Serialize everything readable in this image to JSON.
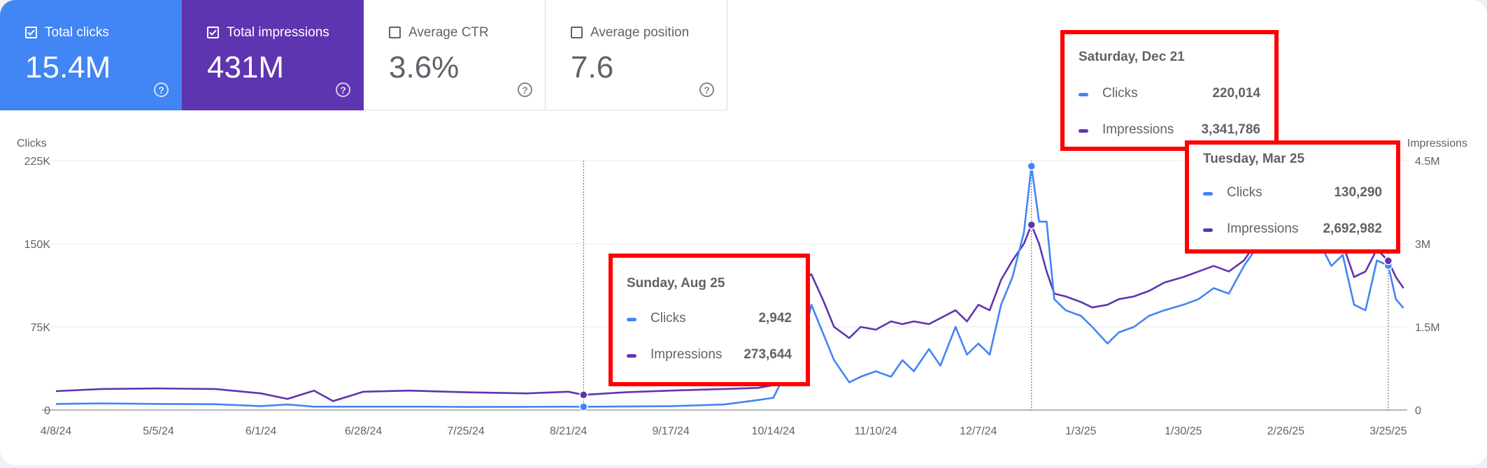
{
  "metrics": [
    {
      "label": "Total clicks",
      "value": "15.4M",
      "checked": true,
      "color": "#4285f4"
    },
    {
      "label": "Total impressions",
      "value": "431M",
      "checked": true,
      "color": "#5e35b1"
    },
    {
      "label": "Average CTR",
      "value": "3.6%",
      "checked": false,
      "color": "#ffffff"
    },
    {
      "label": "Average position",
      "value": "7.6",
      "checked": false,
      "color": "#ffffff"
    }
  ],
  "help_glyph": "?",
  "tooltips": [
    {
      "date": "Sunday, Aug 25",
      "clicks_label": "Clicks",
      "clicks": "2,942",
      "impressions_label": "Impressions",
      "impressions": "273,644"
    },
    {
      "date": "Saturday, Dec 21",
      "clicks_label": "Clicks",
      "clicks": "220,014",
      "impressions_label": "Impressions",
      "impressions": "3,341,786"
    },
    {
      "date": "Tuesday, Mar 25",
      "clicks_label": "Clicks",
      "clicks": "130,290",
      "impressions_label": "Impressions",
      "impressions": "2,692,982"
    }
  ],
  "chart_data": {
    "type": "line",
    "x_start": "2024-04-08",
    "x_end": "2025-03-30",
    "xtick_labels": [
      "4/8/24",
      "5/5/24",
      "6/1/24",
      "6/28/24",
      "7/25/24",
      "8/21/24",
      "9/17/24",
      "10/14/24",
      "11/10/24",
      "12/7/24",
      "1/3/25",
      "1/30/25",
      "2/26/25",
      "3/25/25"
    ],
    "xtick_dates": [
      "2024-04-08",
      "2024-05-05",
      "2024-06-01",
      "2024-06-28",
      "2024-07-25",
      "2024-08-21",
      "2024-09-17",
      "2024-10-14",
      "2024-11-10",
      "2024-12-07",
      "2025-01-03",
      "2025-01-30",
      "2025-02-26",
      "2025-03-25"
    ],
    "y_left": {
      "label": "Clicks",
      "ticks": [
        0,
        75000,
        150000,
        225000
      ],
      "tick_labels": [
        "0",
        "75K",
        "150K",
        "225K"
      ],
      "range": [
        0,
        225000
      ]
    },
    "y_right": {
      "label": "Impressions",
      "ticks": [
        0,
        1500000,
        3000000,
        4500000
      ],
      "tick_labels": [
        "0",
        "1.5M",
        "3M",
        "4.5M"
      ],
      "range": [
        0,
        4500000
      ]
    },
    "grid": true,
    "highlight_dates": [
      "2024-08-25",
      "2024-12-21",
      "2025-03-25"
    ],
    "series": [
      {
        "name": "Clicks",
        "axis": "left",
        "color": "#4285f4",
        "points": [
          [
            "2024-04-08",
            5500
          ],
          [
            "2024-04-20",
            6000
          ],
          [
            "2024-05-05",
            5500
          ],
          [
            "2024-05-20",
            5200
          ],
          [
            "2024-06-01",
            3500
          ],
          [
            "2024-06-08",
            5000
          ],
          [
            "2024-06-15",
            3000
          ],
          [
            "2024-06-28",
            3000
          ],
          [
            "2024-07-15",
            3000
          ],
          [
            "2024-07-25",
            2800
          ],
          [
            "2024-08-10",
            2900
          ],
          [
            "2024-08-21",
            3000
          ],
          [
            "2024-08-25",
            2942
          ],
          [
            "2024-09-05",
            3200
          ],
          [
            "2024-09-17",
            3500
          ],
          [
            "2024-10-01",
            5000
          ],
          [
            "2024-10-10",
            9000
          ],
          [
            "2024-10-14",
            11000
          ],
          [
            "2024-10-16",
            25000
          ],
          [
            "2024-10-18",
            45000
          ],
          [
            "2024-10-21",
            50000
          ],
          [
            "2024-10-24",
            95000
          ],
          [
            "2024-10-27",
            70000
          ],
          [
            "2024-10-30",
            45000
          ],
          [
            "2024-11-03",
            25000
          ],
          [
            "2024-11-06",
            30000
          ],
          [
            "2024-11-10",
            35000
          ],
          [
            "2024-11-14",
            30000
          ],
          [
            "2024-11-17",
            45000
          ],
          [
            "2024-11-20",
            35000
          ],
          [
            "2024-11-24",
            55000
          ],
          [
            "2024-11-27",
            40000
          ],
          [
            "2024-12-01",
            75000
          ],
          [
            "2024-12-04",
            50000
          ],
          [
            "2024-12-07",
            60000
          ],
          [
            "2024-12-10",
            50000
          ],
          [
            "2024-12-13",
            95000
          ],
          [
            "2024-12-16",
            120000
          ],
          [
            "2024-12-19",
            160000
          ],
          [
            "2024-12-21",
            220014
          ],
          [
            "2024-12-23",
            170000
          ],
          [
            "2024-12-25",
            170000
          ],
          [
            "2024-12-27",
            100000
          ],
          [
            "2024-12-30",
            90000
          ],
          [
            "2025-01-03",
            85000
          ],
          [
            "2025-01-06",
            75000
          ],
          [
            "2025-01-10",
            60000
          ],
          [
            "2025-01-13",
            70000
          ],
          [
            "2025-01-17",
            75000
          ],
          [
            "2025-01-21",
            85000
          ],
          [
            "2025-01-25",
            90000
          ],
          [
            "2025-01-30",
            95000
          ],
          [
            "2025-02-03",
            100000
          ],
          [
            "2025-02-07",
            110000
          ],
          [
            "2025-02-11",
            105000
          ],
          [
            "2025-02-15",
            130000
          ],
          [
            "2025-02-19",
            150000
          ],
          [
            "2025-02-23",
            165000
          ],
          [
            "2025-02-26",
            180000
          ],
          [
            "2025-03-01",
            195000
          ],
          [
            "2025-03-04",
            175000
          ],
          [
            "2025-03-07",
            150000
          ],
          [
            "2025-03-10",
            130000
          ],
          [
            "2025-03-13",
            140000
          ],
          [
            "2025-03-16",
            95000
          ],
          [
            "2025-03-19",
            90000
          ],
          [
            "2025-03-22",
            135000
          ],
          [
            "2025-03-25",
            130290
          ],
          [
            "2025-03-27",
            100000
          ],
          [
            "2025-03-29",
            92000
          ]
        ]
      },
      {
        "name": "Impressions",
        "axis": "right",
        "color": "#5e35b1",
        "points": [
          [
            "2024-04-08",
            340000
          ],
          [
            "2024-04-20",
            380000
          ],
          [
            "2024-05-05",
            390000
          ],
          [
            "2024-05-20",
            380000
          ],
          [
            "2024-06-01",
            300000
          ],
          [
            "2024-06-08",
            200000
          ],
          [
            "2024-06-15",
            350000
          ],
          [
            "2024-06-20",
            160000
          ],
          [
            "2024-06-28",
            330000
          ],
          [
            "2024-07-10",
            350000
          ],
          [
            "2024-07-25",
            320000
          ],
          [
            "2024-08-10",
            300000
          ],
          [
            "2024-08-21",
            330000
          ],
          [
            "2024-08-25",
            273644
          ],
          [
            "2024-09-05",
            320000
          ],
          [
            "2024-09-17",
            350000
          ],
          [
            "2024-10-01",
            380000
          ],
          [
            "2024-10-10",
            400000
          ],
          [
            "2024-10-14",
            450000
          ],
          [
            "2024-10-16",
            1000000
          ],
          [
            "2024-10-18",
            1700000
          ],
          [
            "2024-10-21",
            2300000
          ],
          [
            "2024-10-24",
            2450000
          ],
          [
            "2024-10-27",
            2000000
          ],
          [
            "2024-10-30",
            1500000
          ],
          [
            "2024-11-03",
            1300000
          ],
          [
            "2024-11-06",
            1500000
          ],
          [
            "2024-11-10",
            1450000
          ],
          [
            "2024-11-14",
            1600000
          ],
          [
            "2024-11-17",
            1550000
          ],
          [
            "2024-11-20",
            1600000
          ],
          [
            "2024-11-24",
            1550000
          ],
          [
            "2024-12-01",
            1800000
          ],
          [
            "2024-12-04",
            1600000
          ],
          [
            "2024-12-07",
            1900000
          ],
          [
            "2024-12-10",
            1800000
          ],
          [
            "2024-12-13",
            2350000
          ],
          [
            "2024-12-16",
            2700000
          ],
          [
            "2024-12-19",
            3000000
          ],
          [
            "2024-12-21",
            3341786
          ],
          [
            "2024-12-23",
            3000000
          ],
          [
            "2024-12-25",
            2500000
          ],
          [
            "2024-12-27",
            2100000
          ],
          [
            "2024-12-30",
            2050000
          ],
          [
            "2025-01-03",
            1950000
          ],
          [
            "2025-01-06",
            1850000
          ],
          [
            "2025-01-10",
            1900000
          ],
          [
            "2025-01-13",
            2000000
          ],
          [
            "2025-01-17",
            2050000
          ],
          [
            "2025-01-21",
            2150000
          ],
          [
            "2025-01-25",
            2300000
          ],
          [
            "2025-01-30",
            2400000
          ],
          [
            "2025-02-03",
            2500000
          ],
          [
            "2025-02-07",
            2600000
          ],
          [
            "2025-02-11",
            2500000
          ],
          [
            "2025-02-15",
            2700000
          ],
          [
            "2025-02-19",
            3100000
          ],
          [
            "2025-02-23",
            3600000
          ],
          [
            "2025-02-26",
            3800000
          ],
          [
            "2025-03-01",
            3900000
          ],
          [
            "2025-03-04",
            3500000
          ],
          [
            "2025-03-07",
            3200000
          ],
          [
            "2025-03-10",
            2900000
          ],
          [
            "2025-03-13",
            3000000
          ],
          [
            "2025-03-16",
            2400000
          ],
          [
            "2025-03-19",
            2500000
          ],
          [
            "2025-03-22",
            2900000
          ],
          [
            "2025-03-25",
            2692982
          ],
          [
            "2025-03-27",
            2400000
          ],
          [
            "2025-03-29",
            2200000
          ]
        ]
      }
    ]
  }
}
